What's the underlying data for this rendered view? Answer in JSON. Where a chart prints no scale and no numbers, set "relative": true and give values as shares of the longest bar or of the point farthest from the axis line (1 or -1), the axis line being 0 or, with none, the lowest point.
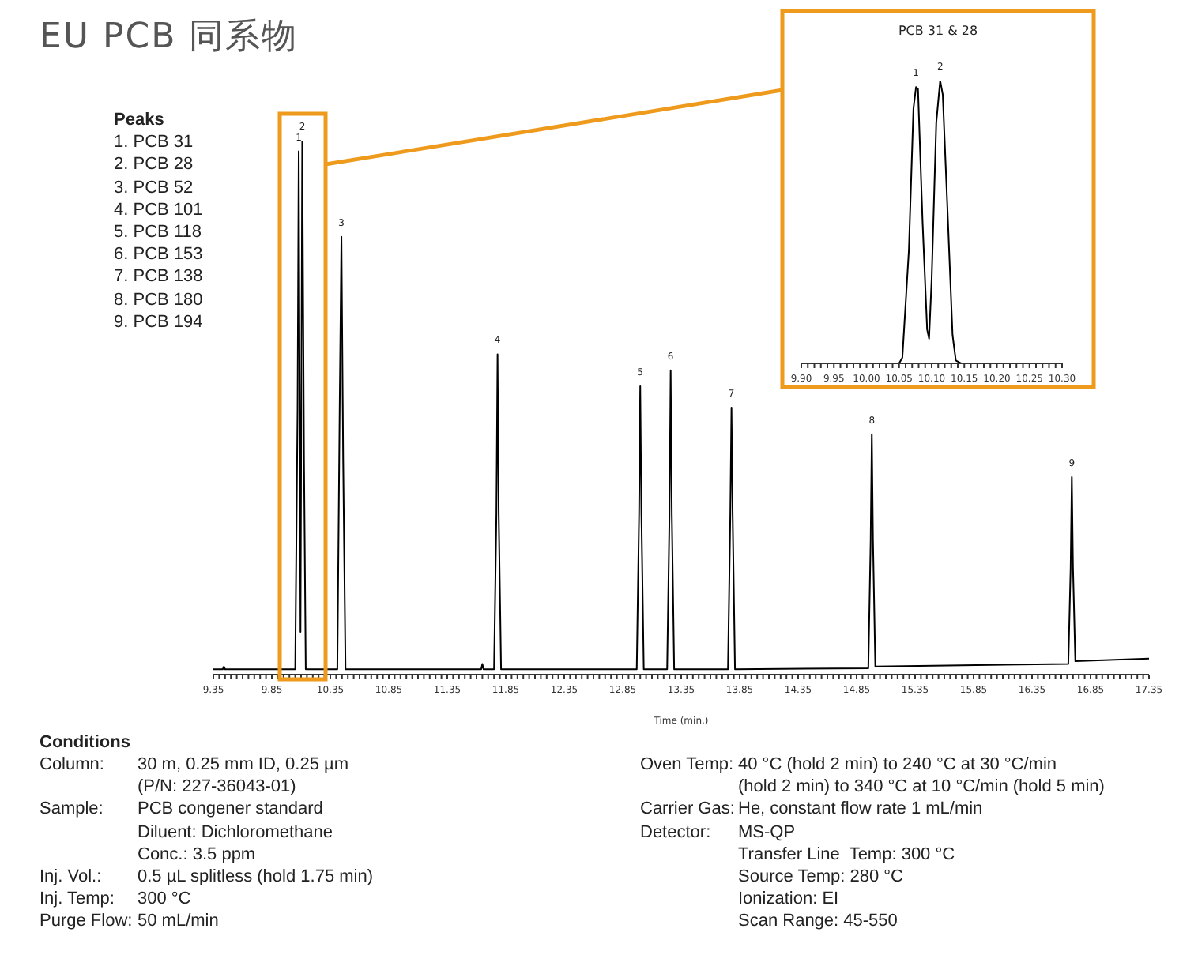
{
  "chart_data": [
    {
      "type": "line",
      "title": "EU PCB 同系物",
      "xlabel": "Time (min.)",
      "relative": true,
      "xlim": [
        9.35,
        17.35
      ],
      "xticks": [
        9.35,
        {
          "value": 9.4,
          "label": null
        },
        {
          "value": 9.45,
          "label": null
        },
        {
          "value": 9.5,
          "label": null
        },
        {
          "value": 9.55,
          "label": null
        },
        {
          "value": 9.6,
          "label": null
        },
        {
          "value": 9.65,
          "label": null
        },
        {
          "value": 9.7,
          "label": null
        },
        {
          "value": 9.75,
          "label": null
        },
        {
          "value": 9.8,
          "label": null
        },
        9.85,
        {
          "value": 9.9,
          "label": null
        },
        {
          "value": 9.95,
          "label": null
        },
        {
          "value": 10,
          "label": null
        },
        {
          "value": 10.05,
          "label": null
        },
        {
          "value": 10.1,
          "label": null
        },
        {
          "value": 10.15,
          "label": null
        },
        {
          "value": 10.2,
          "label": null
        },
        {
          "value": 10.25,
          "label": null
        },
        {
          "value": 10.3,
          "label": null
        },
        10.35,
        {
          "value": 10.4,
          "label": null
        },
        {
          "value": 10.45,
          "label": null
        },
        {
          "value": 10.5,
          "label": null
        },
        {
          "value": 10.55,
          "label": null
        },
        {
          "value": 10.6,
          "label": null
        },
        {
          "value": 10.65,
          "label": null
        },
        {
          "value": 10.7,
          "label": null
        },
        {
          "value": 10.75,
          "label": null
        },
        {
          "value": 10.8,
          "label": null
        },
        10.85,
        {
          "value": 10.9,
          "label": null
        },
        {
          "value": 10.95,
          "label": null
        },
        {
          "value": 11,
          "label": null
        },
        {
          "value": 11.05,
          "label": null
        },
        {
          "value": 11.1,
          "label": null
        },
        {
          "value": 11.15,
          "label": null
        },
        {
          "value": 11.2,
          "label": null
        },
        {
          "value": 11.25,
          "label": null
        },
        {
          "value": 11.3,
          "label": null
        },
        11.35,
        {
          "value": 11.4,
          "label": null
        },
        {
          "value": 11.45,
          "label": null
        },
        {
          "value": 11.5,
          "label": null
        },
        {
          "value": 11.55,
          "label": null
        },
        {
          "value": 11.6,
          "label": null
        },
        {
          "value": 11.65,
          "label": null
        },
        {
          "value": 11.7,
          "label": null
        },
        {
          "value": 11.75,
          "label": null
        },
        {
          "value": 11.8,
          "label": null
        },
        11.85,
        {
          "value": 11.9,
          "label": null
        },
        {
          "value": 11.95,
          "label": null
        },
        {
          "value": 12,
          "label": null
        },
        {
          "value": 12.05,
          "label": null
        },
        {
          "value": 12.1,
          "label": null
        },
        {
          "value": 12.15,
          "label": null
        },
        {
          "value": 12.2,
          "label": null
        },
        {
          "value": 12.25,
          "label": null
        },
        {
          "value": 12.3,
          "label": null
        },
        12.35,
        {
          "value": 12.4,
          "label": null
        },
        {
          "value": 12.45,
          "label": null
        },
        {
          "value": 12.5,
          "label": null
        },
        {
          "value": 12.55,
          "label": null
        },
        {
          "value": 12.6,
          "label": null
        },
        {
          "value": 12.65,
          "label": null
        },
        {
          "value": 12.7,
          "label": null
        },
        {
          "value": 12.75,
          "label": null
        },
        {
          "value": 12.8,
          "label": null
        },
        12.85,
        {
          "value": 12.9,
          "label": null
        },
        {
          "value": 12.95,
          "label": null
        },
        {
          "value": 13,
          "label": null
        },
        {
          "value": 13.05,
          "label": null
        },
        {
          "value": 13.1,
          "label": null
        },
        {
          "value": 13.15,
          "label": null
        },
        {
          "value": 13.2,
          "label": null
        },
        {
          "value": 13.25,
          "label": null
        },
        {
          "value": 13.3,
          "label": null
        },
        13.35,
        {
          "value": 13.4,
          "label": null
        },
        {
          "value": 13.45,
          "label": null
        },
        {
          "value": 13.5,
          "label": null
        },
        {
          "value": 13.55,
          "label": null
        },
        {
          "value": 13.6,
          "label": null
        },
        {
          "value": 13.65,
          "label": null
        },
        {
          "value": 13.7,
          "label": null
        },
        {
          "value": 13.75,
          "label": null
        },
        {
          "value": 13.8,
          "label": null
        },
        13.85,
        {
          "value": 13.9,
          "label": null
        },
        {
          "value": 13.95,
          "label": null
        },
        {
          "value": 14,
          "label": null
        },
        {
          "value": 14.05,
          "label": null
        },
        {
          "value": 14.1,
          "label": null
        },
        {
          "value": 14.15,
          "label": null
        },
        {
          "value": 14.2,
          "label": null
        },
        {
          "value": 14.25,
          "label": null
        },
        {
          "value": 14.3,
          "label": null
        },
        14.35,
        {
          "value": 14.4,
          "label": null
        },
        {
          "value": 14.45,
          "label": null
        },
        {
          "value": 14.5,
          "label": null
        },
        {
          "value": 14.55,
          "label": null
        },
        {
          "value": 14.6,
          "label": null
        },
        {
          "value": 14.65,
          "label": null
        },
        {
          "value": 14.7,
          "label": null
        },
        {
          "value": 14.75,
          "label": null
        },
        {
          "value": 14.8,
          "label": null
        },
        14.85,
        {
          "value": 14.9,
          "label": null
        },
        {
          "value": 14.95,
          "label": null
        },
        {
          "value": 15,
          "label": null
        },
        {
          "value": 15.05,
          "label": null
        },
        {
          "value": 15.1,
          "label": null
        },
        {
          "value": 15.15,
          "label": null
        },
        {
          "value": 15.2,
          "label": null
        },
        {
          "value": 15.25,
          "label": null
        },
        {
          "value": 15.3,
          "label": null
        },
        15.35,
        {
          "value": 15.4,
          "label": null
        },
        {
          "value": 15.45,
          "label": null
        },
        {
          "value": 15.5,
          "label": null
        },
        {
          "value": 15.55,
          "label": null
        },
        {
          "value": 15.6,
          "label": null
        },
        {
          "value": 15.65,
          "label": null
        },
        {
          "value": 15.7,
          "label": null
        },
        {
          "value": 15.75,
          "label": null
        },
        {
          "value": 15.8,
          "label": null
        },
        15.85,
        {
          "value": 15.9,
          "label": null
        },
        {
          "value": 15.95,
          "label": null
        },
        {
          "value": 16,
          "label": null
        },
        {
          "value": 16.05,
          "label": null
        },
        {
          "value": 16.1,
          "label": null
        },
        {
          "value": 16.15,
          "label": null
        },
        {
          "value": 16.2,
          "label": null
        },
        {
          "value": 16.25,
          "label": null
        },
        {
          "value": 16.3,
          "label": null
        },
        16.35,
        {
          "value": 16.4,
          "label": null
        },
        {
          "value": 16.45,
          "label": null
        },
        {
          "value": 16.5,
          "label": null
        },
        {
          "value": 16.55,
          "label": null
        },
        {
          "value": 16.6,
          "label": null
        },
        {
          "value": 16.65,
          "label": null
        },
        {
          "value": 16.7,
          "label": null
        },
        {
          "value": 16.75,
          "label": null
        },
        {
          "value": 16.8,
          "label": null
        },
        16.85,
        {
          "value": 16.9,
          "label": null
        },
        {
          "value": 16.95,
          "label": null
        },
        {
          "value": 17,
          "label": null
        },
        {
          "value": 17.05,
          "label": null
        },
        {
          "value": 17.1,
          "label": null
        },
        {
          "value": 17.15,
          "label": null
        },
        {
          "value": 17.2,
          "label": null
        },
        {
          "value": 17.25,
          "label": null
        },
        {
          "value": 17.3,
          "label": null
        },
        17.35
      ],
      "series": [
        {
          "color": "#000000",
          "x": [
            9.35,
            9.43,
            9.44,
            9.45,
            10.05,
            10.07,
            10.08,
            10.095,
            10.11,
            10.125,
            10.14,
            10.41,
            10.43,
            10.445,
            10.46,
            10.48,
            11.64,
            11.65,
            11.66,
            11.75,
            11.77,
            11.78,
            11.79,
            11.81,
            12.97,
            12.99,
            13.0,
            13.01,
            13.03,
            13.23,
            13.25,
            13.26,
            13.27,
            13.29,
            13.75,
            13.77,
            13.78,
            13.79,
            13.81,
            14.95,
            14.97,
            14.98,
            14.99,
            15.01,
            16.66,
            16.68,
            16.69,
            16.7,
            16.72,
            17.35
          ],
          "values": [
            0.01,
            0.01,
            0.015,
            0.01,
            0.01,
            0.5,
            0.98,
            0.08,
            1,
            0.4,
            0.01,
            0.01,
            0.5,
            0.82,
            0.4,
            0.01,
            0.01,
            0.02,
            0.01,
            0.01,
            0.3,
            0.6,
            0.3,
            0.01,
            0.01,
            0.3,
            0.54,
            0.3,
            0.01,
            0.01,
            0.3,
            0.57,
            0.3,
            0.01,
            0.01,
            0.3,
            0.5,
            0.3,
            0.01,
            0.012,
            0.25,
            0.45,
            0.25,
            0.015,
            0.02,
            0.2,
            0.37,
            0.2,
            0.025,
            0.03
          ]
        }
      ],
      "annotations": [
        {
          "text": "1",
          "x": 10.08,
          "y": 0.98
        },
        {
          "text": "2",
          "x": 10.11,
          "y": 1
        },
        {
          "text": "3",
          "x": 10.445,
          "y": 0.82
        },
        {
          "text": "4",
          "x": 11.78,
          "y": 0.6
        },
        {
          "text": "5",
          "x": 13.0,
          "y": 0.54
        },
        {
          "text": "6",
          "x": 13.26,
          "y": 0.57
        },
        {
          "text": "7",
          "x": 13.78,
          "y": 0.5
        },
        {
          "text": "8",
          "x": 14.98,
          "y": 0.45
        },
        {
          "text": "9",
          "x": 16.69,
          "y": 0.37
        },
        "Peaks",
        "1. PCB 31",
        "2. PCB 28",
        "3. PCB 52",
        "4. PCB 101",
        "5. PCB 118",
        "6. PCB 153",
        "7. PCB 138",
        "8. PCB 180",
        "9. PCB 194",
        "Conditions",
        "Column:",
        "30 m, 0.25 mm ID, 0.25 µm",
        "(P/N: 227-36043-01)",
        "Sample:",
        "PCB congener standard",
        "Diluent: Dichloromethane",
        "Conc.: 3.5 ppm",
        "Inj. Vol.:",
        "0.5 µL splitless (hold 1.75 min)",
        "Inj. Temp:",
        "300 °C",
        "Purge Flow:",
        "50 mL/min",
        "Oven Temp:",
        "40 °C (hold 2 min) to 240 °C at 30 °C/min",
        "(hold 2 min) to 340 °C at 10 °C/min (hold 5 min)",
        "Carrier Gas:",
        "He, constant flow rate 1 mL/min",
        "Detector:",
        "MS-QP",
        "Transfer Line  Temp: 300 °C",
        "Source Temp: 280 °C",
        "Ionization: EI",
        "Scan Range: 45-550"
      ]
    },
    {
      "type": "line",
      "title": "PCB 31 & 28",
      "relative": true,
      "xlim": [
        9.9,
        10.3
      ],
      "xticks": [
        {
          "value": 9.9,
          "label": "9.90"
        },
        {
          "value": 9.91,
          "label": null
        },
        {
          "value": 9.92,
          "label": null
        },
        {
          "value": 9.93,
          "label": null
        },
        {
          "value": 9.94,
          "label": null
        },
        9.95,
        {
          "value": 9.96,
          "label": null
        },
        {
          "value": 9.97,
          "label": null
        },
        {
          "value": 9.98,
          "label": null
        },
        {
          "value": 9.99,
          "label": null
        },
        {
          "value": 10,
          "label": "10.00"
        },
        {
          "value": 10.01,
          "label": null
        },
        {
          "value": 10.02,
          "label": null
        },
        {
          "value": 10.03,
          "label": null
        },
        {
          "value": 10.04,
          "label": null
        },
        10.05,
        {
          "value": 10.06,
          "label": null
        },
        {
          "value": 10.07,
          "label": null
        },
        {
          "value": 10.08,
          "label": null
        },
        {
          "value": 10.09,
          "label": null
        },
        {
          "value": 10.1,
          "label": "10.10"
        },
        {
          "value": 10.11,
          "label": null
        },
        {
          "value": 10.12,
          "label": null
        },
        {
          "value": 10.13,
          "label": null
        },
        {
          "value": 10.14,
          "label": null
        },
        10.15,
        {
          "value": 10.16,
          "label": null
        },
        {
          "value": 10.17,
          "label": null
        },
        {
          "value": 10.18,
          "label": null
        },
        {
          "value": 10.19,
          "label": null
        },
        {
          "value": 10.2,
          "label": "10.20"
        },
        {
          "value": 10.21,
          "label": null
        },
        {
          "value": 10.22,
          "label": null
        },
        {
          "value": 10.23,
          "label": null
        },
        {
          "value": 10.24,
          "label": null
        },
        10.25,
        {
          "value": 10.26,
          "label": null
        },
        {
          "value": 10.27,
          "label": null
        },
        {
          "value": 10.28,
          "label": null
        },
        {
          "value": 10.29,
          "label": null
        },
        {
          "value": 10.3,
          "label": "10.30"
        }
      ],
      "series": [
        {
          "color": "#000000",
          "x": [
            9.9,
            10.05,
            10.055,
            10.065,
            10.072,
            10.076,
            10.079,
            10.086,
            10.093,
            10.096,
            10.1,
            10.107,
            10.113,
            10.117,
            10.125,
            10.132,
            10.137,
            10.145,
            10.3
          ],
          "values": [
            0,
            0,
            0.02,
            0.4,
            0.9,
            0.977,
            0.97,
            0.5,
            0.12,
            0.087,
            0.3,
            0.85,
            1,
            0.95,
            0.5,
            0.1,
            0.01,
            0,
            0
          ]
        }
      ],
      "annotations": [
        {
          "text": "1",
          "x": 10.076,
          "y": 0.977
        },
        {
          "text": "2",
          "x": 10.113,
          "y": 1
        }
      ]
    }
  ]
}
